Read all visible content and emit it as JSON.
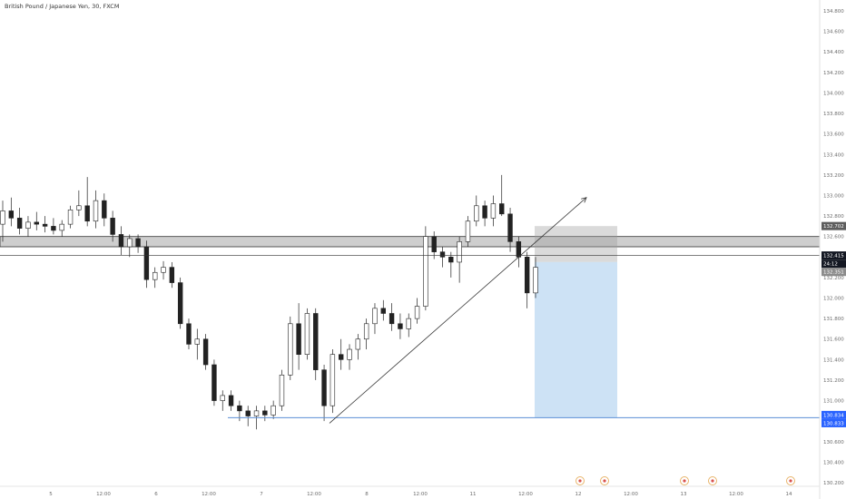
{
  "chart_data": {
    "type": "candlestick",
    "title": "British Pound / Japanese Yen, 30, FXCM",
    "ylim": [
      130.2,
      134.8
    ],
    "y_ticks": [
      "134.800",
      "134.600",
      "134.400",
      "134.200",
      "134.000",
      "133.800",
      "133.600",
      "133.400",
      "133.200",
      "133.000",
      "132.800",
      "132.600",
      "132.400",
      "132.200",
      "132.000",
      "131.800",
      "131.600",
      "131.400",
      "131.200",
      "131.000",
      "130.800",
      "130.600",
      "130.400",
      "130.200"
    ],
    "x_ticks": [
      "5",
      "12:00",
      "6",
      "12:00",
      "7",
      "12:00",
      "8",
      "12:00",
      "11",
      "12:00",
      "12",
      "12:00",
      "13",
      "12:00",
      "14"
    ],
    "price_badges": [
      {
        "label": "132.702",
        "value": 132.702,
        "color": "#5d5d5d"
      },
      {
        "label": "132.415",
        "value": 132.415,
        "color": "#131722"
      },
      {
        "label": "24:12",
        "value": 132.335,
        "color": "#131722"
      },
      {
        "label": "132.351",
        "value": 132.255,
        "color": "#8c8c8c"
      },
      {
        "label": "130.834",
        "value": 130.86,
        "color": "#2962ff"
      },
      {
        "label": "130.833",
        "value": 130.78,
        "color": "#2962ff"
      }
    ],
    "resistance_zone": {
      "top": 132.6,
      "bottom": 132.5
    },
    "current_price_line": 132.415,
    "take_profit_line": 130.834,
    "position": {
      "entry": 132.351,
      "stop": 132.702,
      "target": 130.834
    },
    "trendline": {
      "from": 130.78,
      "to": 132.98
    },
    "candles": [
      {
        "o": 132.72,
        "h": 132.95,
        "l": 132.55,
        "c": 132.85
      },
      {
        "o": 132.85,
        "h": 132.98,
        "l": 132.7,
        "c": 132.78
      },
      {
        "o": 132.78,
        "h": 132.88,
        "l": 132.62,
        "c": 132.68
      },
      {
        "o": 132.68,
        "h": 132.8,
        "l": 132.6,
        "c": 132.74
      },
      {
        "o": 132.74,
        "h": 132.84,
        "l": 132.66,
        "c": 132.72
      },
      {
        "o": 132.72,
        "h": 132.8,
        "l": 132.64,
        "c": 132.7
      },
      {
        "o": 132.7,
        "h": 132.78,
        "l": 132.62,
        "c": 132.66
      },
      {
        "o": 132.66,
        "h": 132.76,
        "l": 132.6,
        "c": 132.72
      },
      {
        "o": 132.72,
        "h": 132.9,
        "l": 132.68,
        "c": 132.86
      },
      {
        "o": 132.86,
        "h": 133.05,
        "l": 132.8,
        "c": 132.9
      },
      {
        "o": 132.9,
        "h": 133.18,
        "l": 132.7,
        "c": 132.75
      },
      {
        "o": 132.75,
        "h": 133.05,
        "l": 132.68,
        "c": 132.95
      },
      {
        "o": 132.95,
        "h": 133.02,
        "l": 132.7,
        "c": 132.78
      },
      {
        "o": 132.78,
        "h": 132.85,
        "l": 132.55,
        "c": 132.62
      },
      {
        "o": 132.62,
        "h": 132.7,
        "l": 132.42,
        "c": 132.5
      },
      {
        "o": 132.5,
        "h": 132.62,
        "l": 132.4,
        "c": 132.58
      },
      {
        "o": 132.58,
        "h": 132.62,
        "l": 132.44,
        "c": 132.5
      },
      {
        "o": 132.5,
        "h": 132.56,
        "l": 132.1,
        "c": 132.18
      },
      {
        "o": 132.18,
        "h": 132.3,
        "l": 132.1,
        "c": 132.25
      },
      {
        "o": 132.25,
        "h": 132.36,
        "l": 132.18,
        "c": 132.3
      },
      {
        "o": 132.3,
        "h": 132.35,
        "l": 132.1,
        "c": 132.15
      },
      {
        "o": 132.15,
        "h": 132.2,
        "l": 131.7,
        "c": 131.75
      },
      {
        "o": 131.75,
        "h": 131.8,
        "l": 131.5,
        "c": 131.55
      },
      {
        "o": 131.55,
        "h": 131.7,
        "l": 131.4,
        "c": 131.6
      },
      {
        "o": 131.6,
        "h": 131.65,
        "l": 131.3,
        "c": 131.35
      },
      {
        "o": 131.35,
        "h": 131.4,
        "l": 130.95,
        "c": 131.0
      },
      {
        "o": 131.0,
        "h": 131.1,
        "l": 130.9,
        "c": 131.05
      },
      {
        "o": 131.05,
        "h": 131.1,
        "l": 130.9,
        "c": 130.95
      },
      {
        "o": 130.95,
        "h": 131.0,
        "l": 130.8,
        "c": 130.9
      },
      {
        "o": 130.9,
        "h": 130.95,
        "l": 130.75,
        "c": 130.85
      },
      {
        "o": 130.85,
        "h": 130.95,
        "l": 130.72,
        "c": 130.9
      },
      {
        "o": 130.9,
        "h": 130.95,
        "l": 130.8,
        "c": 130.86
      },
      {
        "o": 130.86,
        "h": 131.0,
        "l": 130.82,
        "c": 130.95
      },
      {
        "o": 130.95,
        "h": 131.3,
        "l": 130.9,
        "c": 131.25
      },
      {
        "o": 131.25,
        "h": 131.82,
        "l": 131.2,
        "c": 131.75
      },
      {
        "o": 131.75,
        "h": 131.95,
        "l": 131.3,
        "c": 131.45
      },
      {
        "o": 131.45,
        "h": 131.9,
        "l": 131.4,
        "c": 131.85
      },
      {
        "o": 131.85,
        "h": 131.9,
        "l": 131.2,
        "c": 131.3
      },
      {
        "o": 131.3,
        "h": 131.35,
        "l": 130.8,
        "c": 130.95
      },
      {
        "o": 130.95,
        "h": 131.5,
        "l": 130.88,
        "c": 131.45
      },
      {
        "o": 131.45,
        "h": 131.6,
        "l": 131.3,
        "c": 131.4
      },
      {
        "o": 131.4,
        "h": 131.55,
        "l": 131.3,
        "c": 131.5
      },
      {
        "o": 131.5,
        "h": 131.65,
        "l": 131.4,
        "c": 131.6
      },
      {
        "o": 131.6,
        "h": 131.8,
        "l": 131.5,
        "c": 131.75
      },
      {
        "o": 131.75,
        "h": 131.95,
        "l": 131.65,
        "c": 131.9
      },
      {
        "o": 131.9,
        "h": 131.98,
        "l": 131.78,
        "c": 131.85
      },
      {
        "o": 131.85,
        "h": 131.95,
        "l": 131.68,
        "c": 131.75
      },
      {
        "o": 131.75,
        "h": 131.85,
        "l": 131.6,
        "c": 131.7
      },
      {
        "o": 131.7,
        "h": 131.85,
        "l": 131.62,
        "c": 131.8
      },
      {
        "o": 131.8,
        "h": 132.0,
        "l": 131.75,
        "c": 131.92
      },
      {
        "o": 131.92,
        "h": 132.7,
        "l": 131.88,
        "c": 132.6
      },
      {
        "o": 132.6,
        "h": 132.65,
        "l": 132.38,
        "c": 132.45
      },
      {
        "o": 132.45,
        "h": 132.5,
        "l": 132.3,
        "c": 132.4
      },
      {
        "o": 132.4,
        "h": 132.45,
        "l": 132.2,
        "c": 132.35
      },
      {
        "o": 132.35,
        "h": 132.6,
        "l": 132.15,
        "c": 132.55
      },
      {
        "o": 132.55,
        "h": 132.8,
        "l": 132.5,
        "c": 132.75
      },
      {
        "o": 132.75,
        "h": 133.0,
        "l": 132.7,
        "c": 132.9
      },
      {
        "o": 132.9,
        "h": 132.95,
        "l": 132.7,
        "c": 132.78
      },
      {
        "o": 132.78,
        "h": 133.0,
        "l": 132.7,
        "c": 132.92
      },
      {
        "o": 132.92,
        "h": 133.2,
        "l": 132.8,
        "c": 132.82
      },
      {
        "o": 132.82,
        "h": 132.88,
        "l": 132.45,
        "c": 132.55
      },
      {
        "o": 132.55,
        "h": 132.6,
        "l": 132.3,
        "c": 132.4
      },
      {
        "o": 132.4,
        "h": 132.45,
        "l": 131.9,
        "c": 132.05
      },
      {
        "o": 132.05,
        "h": 132.4,
        "l": 132.0,
        "c": 132.3
      }
    ]
  }
}
